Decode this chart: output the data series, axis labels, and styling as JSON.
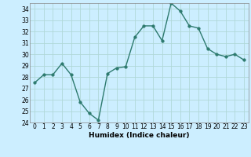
{
  "x": [
    0,
    1,
    2,
    3,
    4,
    5,
    6,
    7,
    8,
    9,
    10,
    11,
    12,
    13,
    14,
    15,
    16,
    17,
    18,
    19,
    20,
    21,
    22,
    23
  ],
  "y": [
    27.5,
    28.2,
    28.2,
    29.2,
    28.2,
    25.8,
    24.8,
    24.2,
    28.3,
    28.8,
    28.9,
    31.5,
    32.5,
    32.5,
    31.2,
    34.5,
    33.8,
    32.5,
    32.3,
    30.5,
    30.0,
    29.8,
    30.0,
    29.5
  ],
  "xlabel": "Humidex (Indice chaleur)",
  "xlim": [
    -0.5,
    23.5
  ],
  "ylim": [
    24,
    34.5
  ],
  "yticks": [
    24,
    25,
    26,
    27,
    28,
    29,
    30,
    31,
    32,
    33,
    34
  ],
  "xticks": [
    0,
    1,
    2,
    3,
    4,
    5,
    6,
    7,
    8,
    9,
    10,
    11,
    12,
    13,
    14,
    15,
    16,
    17,
    18,
    19,
    20,
    21,
    22,
    23
  ],
  "line_color": "#2d7a6e",
  "marker": "o",
  "marker_size": 2.5,
  "line_width": 1.0,
  "bg_color": "#cceeff",
  "grid_color": "#b0d8d8",
  "tick_fontsize": 5.5,
  "label_fontsize": 6.5
}
